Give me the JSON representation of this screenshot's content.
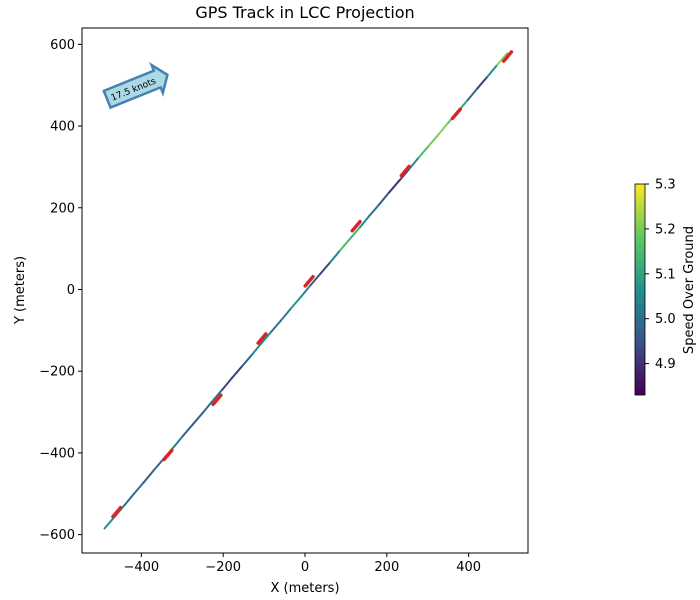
{
  "chart_data": {
    "type": "line",
    "title": "GPS Track in LCC Projection",
    "xlabel": "X (meters)",
    "ylabel": "Y (meters)",
    "xlim": [
      -545,
      545
    ],
    "ylim": [
      -645,
      640
    ],
    "xticks": [
      -400,
      -200,
      0,
      200,
      400
    ],
    "yticks": [
      -600,
      -400,
      -200,
      0,
      200,
      400,
      600
    ],
    "tick_labels_x": [
      "−400",
      "−200",
      "0",
      "200",
      "400"
    ],
    "tick_labels_y": [
      "−600",
      "−400",
      "−200",
      "0",
      "200",
      "400",
      "600"
    ],
    "grid": false,
    "track": {
      "x": [
        -490,
        -466,
        -442,
        -418,
        -394,
        -370,
        -346,
        -322,
        -298,
        -274,
        -250,
        -226,
        -202,
        -178,
        -154,
        -130,
        -106,
        -82,
        -58,
        -34,
        -10,
        14,
        38,
        62,
        86,
        110,
        134,
        158,
        182,
        206,
        230,
        254,
        278,
        302,
        326,
        350,
        374,
        398,
        422,
        446,
        470,
        494
      ],
      "y": [
        -585,
        -557,
        -529,
        -500,
        -472,
        -443,
        -415,
        -387,
        -358,
        -330,
        -302,
        -273,
        -245,
        -216,
        -188,
        -160,
        -131,
        -103,
        -75,
        -46,
        -18,
        11,
        39,
        67,
        96,
        124,
        152,
        181,
        209,
        238,
        266,
        294,
        323,
        351,
        379,
        408,
        436,
        464,
        493,
        521,
        550,
        578
      ],
      "speed": [
        5.05,
        5.08,
        5.02,
        4.97,
        5.03,
        4.92,
        5.05,
        5.1,
        4.95,
        5.0,
        4.93,
        5.05,
        4.96,
        4.9,
        4.94,
        5.02,
        5.08,
        5.04,
        4.99,
        5.06,
        5.1,
        5.0,
        4.92,
        4.95,
        5.12,
        5.18,
        5.08,
        5.02,
        4.98,
        4.92,
        4.88,
        4.96,
        5.12,
        5.18,
        5.22,
        5.2,
        5.14,
        5.06,
        4.94,
        4.9,
        5.2,
        5.24
      ]
    },
    "heading_markers": {
      "x": [
        -460,
        -335,
        -215,
        -105,
        10,
        125,
        245,
        370,
        495
      ],
      "y": [
        -545,
        -405,
        -270,
        -120,
        20,
        155,
        290,
        430,
        570
      ],
      "color": "#d62728"
    },
    "annotation": {
      "text": "17.5 knots",
      "fill": "#add8e6",
      "edge": "#4682b4"
    },
    "colorbar": {
      "label": "Speed Over Ground",
      "colormap": "viridis",
      "vmin": 4.83,
      "vmax": 5.3,
      "ticks": [
        4.9,
        5.0,
        5.1,
        5.2,
        5.3
      ],
      "tick_labels": [
        "4.9",
        "5.0",
        "5.1",
        "5.2",
        "5.3"
      ]
    }
  }
}
